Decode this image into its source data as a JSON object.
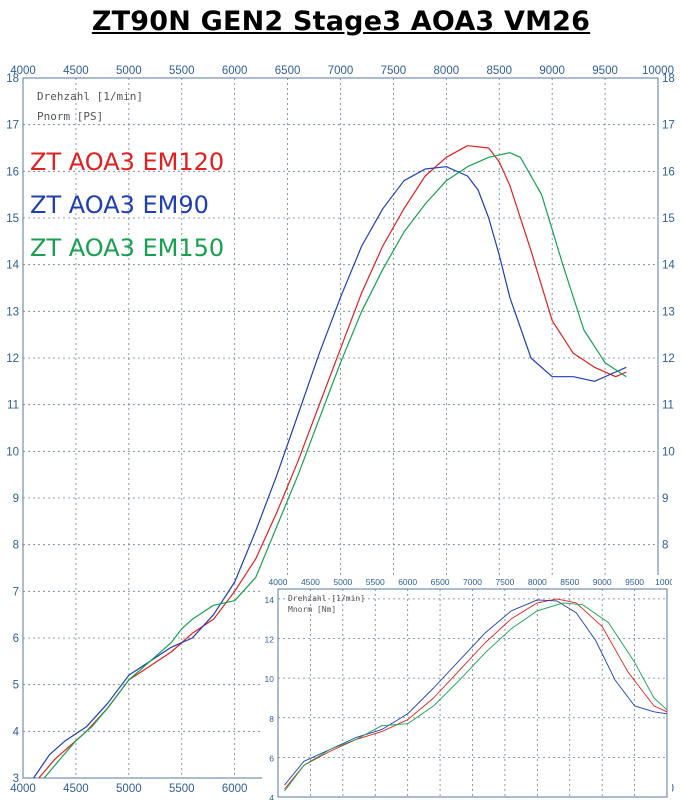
{
  "title": "ZT90N GEN2 Stage3 AOA3 VM26",
  "chart_data": [
    {
      "type": "line",
      "xlabel": "Drehzahl [1/min]",
      "ylabel": "Pnorm [PS]",
      "xlim": [
        4000,
        10000
      ],
      "ylim": [
        3,
        18
      ],
      "x_ticks": [
        "4000",
        "4500",
        "5000",
        "5500",
        "6000",
        "6500",
        "7000",
        "7500",
        "8000",
        "8500",
        "9000",
        "9500",
        "10000"
      ],
      "y_ticks": [
        "3",
        "4",
        "5",
        "6",
        "7",
        "8",
        "9",
        "10",
        "11",
        "12",
        "13",
        "14",
        "15",
        "16",
        "17",
        "18"
      ],
      "grid": true,
      "legend_position": "top-left",
      "series": [
        {
          "name": "ZT AOA3 EM120",
          "color": "#e02020",
          "x": [
            4150,
            4300,
            4450,
            4600,
            4800,
            5000,
            5200,
            5400,
            5600,
            5800,
            6000,
            6200,
            6400,
            6600,
            6800,
            7000,
            7200,
            7400,
            7600,
            7800,
            8000,
            8200,
            8400,
            8500,
            8600,
            8800,
            9000,
            9200,
            9400,
            9600,
            9700
          ],
          "y": [
            3.0,
            3.4,
            3.7,
            4.0,
            4.5,
            5.1,
            5.4,
            5.7,
            6.1,
            6.4,
            7.0,
            7.7,
            8.7,
            9.8,
            11.0,
            12.2,
            13.4,
            14.4,
            15.2,
            15.9,
            16.3,
            16.55,
            16.5,
            16.2,
            15.7,
            14.3,
            12.8,
            12.1,
            11.8,
            11.6,
            11.7
          ]
        },
        {
          "name": "ZT AOA3 EM90",
          "color": "#1f3fb0",
          "x": [
            4100,
            4250,
            4400,
            4600,
            4800,
            5000,
            5200,
            5400,
            5600,
            5800,
            6000,
            6200,
            6400,
            6600,
            6800,
            7000,
            7200,
            7400,
            7600,
            7800,
            8000,
            8200,
            8300,
            8400,
            8500,
            8600,
            8800,
            9000,
            9200,
            9400,
            9600,
            9700
          ],
          "y": [
            3.0,
            3.5,
            3.8,
            4.1,
            4.6,
            5.2,
            5.5,
            5.8,
            6.0,
            6.5,
            7.2,
            8.3,
            9.5,
            10.8,
            12.1,
            13.3,
            14.4,
            15.2,
            15.8,
            16.05,
            16.1,
            15.9,
            15.6,
            15.0,
            14.2,
            13.3,
            12.0,
            11.6,
            11.6,
            11.5,
            11.7,
            11.8
          ]
        },
        {
          "name": "ZT AOA3 EM150",
          "color": "#18a050",
          "x": [
            4200,
            4350,
            4500,
            4650,
            4800,
            5000,
            5200,
            5400,
            5500,
            5600,
            5800,
            6000,
            6200,
            6400,
            6600,
            6800,
            7000,
            7200,
            7400,
            7600,
            7800,
            8000,
            8200,
            8400,
            8600,
            8700,
            8900,
            9100,
            9300,
            9500,
            9700
          ],
          "y": [
            3.0,
            3.4,
            3.8,
            4.1,
            4.5,
            5.1,
            5.5,
            5.9,
            6.2,
            6.4,
            6.7,
            6.8,
            7.3,
            8.4,
            9.5,
            10.7,
            11.9,
            13.0,
            13.9,
            14.7,
            15.3,
            15.8,
            16.1,
            16.3,
            16.4,
            16.3,
            15.5,
            14.0,
            12.6,
            11.9,
            11.6
          ]
        }
      ]
    },
    {
      "type": "line",
      "xlabel": "Drehzahl [1/min]",
      "ylabel": "Mnorm [Nm]",
      "xlim": [
        4000,
        10000
      ],
      "ylim": [
        4,
        14.5
      ],
      "x_ticks": [
        "4000",
        "4500",
        "5000",
        "5500",
        "6000",
        "6500",
        "7000",
        "7500",
        "8000",
        "8500",
        "9000",
        "9500",
        "10000"
      ],
      "y_ticks": [
        "4",
        "6",
        "8",
        "10",
        "12",
        "14"
      ],
      "grid": true,
      "series": [
        {
          "name": "ZT AOA3 EM120",
          "color": "#e02020",
          "x": [
            4100,
            4400,
            4800,
            5200,
            5600,
            6000,
            6400,
            6800,
            7200,
            7600,
            8000,
            8300,
            8600,
            9000,
            9400,
            9800,
            10000
          ],
          "y": [
            4.4,
            5.6,
            6.3,
            6.9,
            7.3,
            7.9,
            9.0,
            10.4,
            11.8,
            13.0,
            13.8,
            14.0,
            13.8,
            12.6,
            10.3,
            8.6,
            8.3
          ]
        },
        {
          "name": "ZT AOA3 EM90",
          "color": "#1f3fb0",
          "x": [
            4100,
            4400,
            4800,
            5200,
            5600,
            6000,
            6400,
            6800,
            7200,
            7600,
            8000,
            8300,
            8600,
            8900,
            9200,
            9500,
            9800,
            10000
          ],
          "y": [
            4.6,
            5.8,
            6.4,
            7.0,
            7.4,
            8.2,
            9.5,
            10.9,
            12.3,
            13.4,
            13.95,
            13.9,
            13.3,
            11.9,
            9.9,
            8.6,
            8.3,
            8.2
          ]
        },
        {
          "name": "ZT AOA3 EM150",
          "color": "#18a050",
          "x": [
            4100,
            4400,
            4800,
            5200,
            5600,
            6000,
            6400,
            6800,
            7200,
            7600,
            8000,
            8400,
            8700,
            9100,
            9500,
            9800,
            10000
          ],
          "y": [
            4.3,
            5.6,
            6.4,
            6.9,
            7.6,
            7.7,
            8.6,
            9.9,
            11.3,
            12.5,
            13.4,
            13.8,
            13.7,
            12.8,
            10.8,
            9.0,
            8.4
          ]
        }
      ]
    }
  ]
}
